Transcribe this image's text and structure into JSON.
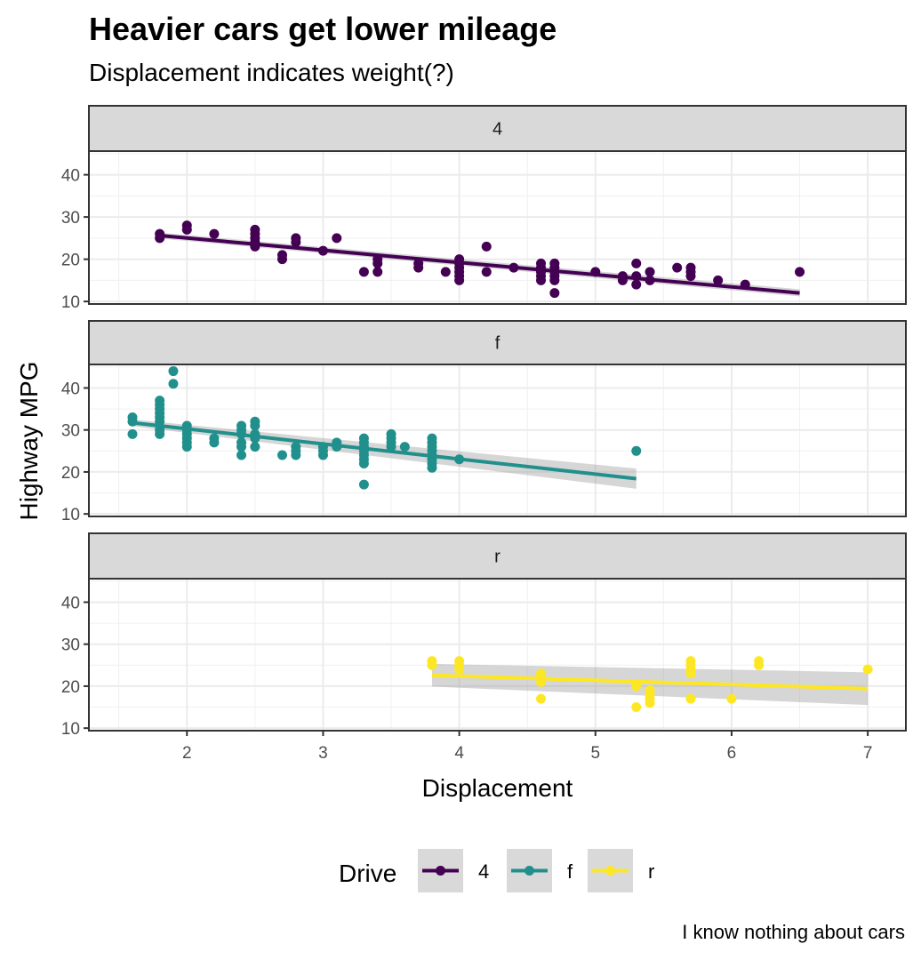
{
  "title": "Heavier cars get lower mileage",
  "subtitle": "Displacement indicates weight(?)",
  "caption": "I know nothing about cars",
  "chart_data": {
    "type": "scatter",
    "facet_by": "drive",
    "xlabel": "Displacement",
    "ylabel": "Highway MPG",
    "xlim": [
      1.28,
      7.28
    ],
    "ylim": [
      9.4,
      45.6
    ],
    "x_ticks": [
      2,
      3,
      4,
      5,
      6,
      7
    ],
    "x_tick_labels": [
      "2",
      "3",
      "4",
      "5",
      "6",
      "7"
    ],
    "y_ticks": [
      10,
      20,
      30,
      40
    ],
    "y_tick_labels": [
      "10",
      "20",
      "30",
      "40"
    ],
    "grid": true,
    "smoother": "linear regression with confidence band",
    "legend": {
      "title": "Drive",
      "position": "bottom",
      "entries": [
        "4",
        "f",
        "r"
      ]
    },
    "series": [
      {
        "name": "4",
        "color": "#440154",
        "points": [
          [
            1.8,
            26
          ],
          [
            1.8,
            25
          ],
          [
            2.0,
            28
          ],
          [
            2.0,
            27
          ],
          [
            2.2,
            26
          ],
          [
            2.5,
            27
          ],
          [
            2.5,
            26
          ],
          [
            2.5,
            25
          ],
          [
            2.5,
            24
          ],
          [
            2.5,
            23
          ],
          [
            2.7,
            21
          ],
          [
            2.7,
            20
          ],
          [
            2.8,
            25
          ],
          [
            2.8,
            24
          ],
          [
            3.0,
            22
          ],
          [
            3.1,
            25
          ],
          [
            3.3,
            17
          ],
          [
            3.4,
            20
          ],
          [
            3.4,
            19
          ],
          [
            3.4,
            17
          ],
          [
            3.7,
            19
          ],
          [
            3.7,
            18
          ],
          [
            3.9,
            17
          ],
          [
            4.0,
            20
          ],
          [
            4.0,
            19
          ],
          [
            4.0,
            18
          ],
          [
            4.0,
            17
          ],
          [
            4.0,
            16
          ],
          [
            4.0,
            15
          ],
          [
            4.2,
            23
          ],
          [
            4.2,
            17
          ],
          [
            4.4,
            18
          ],
          [
            4.6,
            19
          ],
          [
            4.6,
            18
          ],
          [
            4.6,
            17
          ],
          [
            4.6,
            16
          ],
          [
            4.6,
            15
          ],
          [
            4.7,
            19
          ],
          [
            4.7,
            18
          ],
          [
            4.7,
            17
          ],
          [
            4.7,
            16
          ],
          [
            4.7,
            15
          ],
          [
            4.7,
            12
          ],
          [
            5.0,
            17
          ],
          [
            5.2,
            16
          ],
          [
            5.2,
            15
          ],
          [
            5.3,
            19
          ],
          [
            5.3,
            16
          ],
          [
            5.3,
            14
          ],
          [
            5.4,
            17
          ],
          [
            5.4,
            15
          ],
          [
            5.6,
            18
          ],
          [
            5.7,
            18
          ],
          [
            5.7,
            17
          ],
          [
            5.7,
            16
          ],
          [
            5.9,
            15
          ],
          [
            6.1,
            14
          ],
          [
            6.5,
            17
          ]
        ],
        "fit": {
          "x": [
            1.8,
            6.5
          ],
          "y": [
            25.6,
            12.0
          ],
          "se_low": [
            24.9,
            11.2
          ],
          "se_high": [
            26.3,
            12.9
          ]
        }
      },
      {
        "name": "f",
        "color": "#21908C",
        "points": [
          [
            1.6,
            33
          ],
          [
            1.6,
            32
          ],
          [
            1.6,
            29
          ],
          [
            1.8,
            37
          ],
          [
            1.8,
            36
          ],
          [
            1.8,
            35
          ],
          [
            1.8,
            34
          ],
          [
            1.8,
            33
          ],
          [
            1.8,
            32
          ],
          [
            1.8,
            30
          ],
          [
            1.8,
            29
          ],
          [
            1.9,
            44
          ],
          [
            1.9,
            41
          ],
          [
            2.0,
            31
          ],
          [
            2.0,
            30
          ],
          [
            2.0,
            29
          ],
          [
            2.0,
            28
          ],
          [
            2.0,
            27
          ],
          [
            2.0,
            26
          ],
          [
            2.2,
            28
          ],
          [
            2.2,
            27
          ],
          [
            2.4,
            31
          ],
          [
            2.4,
            30
          ],
          [
            2.4,
            29
          ],
          [
            2.4,
            27
          ],
          [
            2.4,
            26
          ],
          [
            2.4,
            24
          ],
          [
            2.5,
            32
          ],
          [
            2.5,
            31
          ],
          [
            2.5,
            29
          ],
          [
            2.5,
            28
          ],
          [
            2.5,
            26
          ],
          [
            2.7,
            24
          ],
          [
            2.8,
            26
          ],
          [
            2.8,
            25
          ],
          [
            2.8,
            24
          ],
          [
            3.0,
            26
          ],
          [
            3.0,
            25
          ],
          [
            3.0,
            24
          ],
          [
            3.1,
            27
          ],
          [
            3.1,
            26
          ],
          [
            3.3,
            28
          ],
          [
            3.3,
            27
          ],
          [
            3.3,
            26
          ],
          [
            3.3,
            25
          ],
          [
            3.3,
            24
          ],
          [
            3.3,
            23
          ],
          [
            3.3,
            22
          ],
          [
            3.3,
            17
          ],
          [
            3.5,
            29
          ],
          [
            3.5,
            28
          ],
          [
            3.5,
            27
          ],
          [
            3.5,
            26
          ],
          [
            3.6,
            26
          ],
          [
            3.8,
            28
          ],
          [
            3.8,
            27
          ],
          [
            3.8,
            26
          ],
          [
            3.8,
            25
          ],
          [
            3.8,
            24
          ],
          [
            3.8,
            23
          ],
          [
            3.8,
            22
          ],
          [
            3.8,
            21
          ],
          [
            4.0,
            23
          ],
          [
            5.3,
            25
          ]
        ],
        "fit": {
          "x": [
            1.6,
            5.3
          ],
          "y": [
            31.7,
            18.4
          ],
          "se_low": [
            30.9,
            16.0
          ],
          "se_high": [
            32.5,
            20.8
          ]
        }
      },
      {
        "name": "r",
        "color": "#FDE725",
        "points": [
          [
            3.8,
            26
          ],
          [
            3.8,
            25
          ],
          [
            4.0,
            26
          ],
          [
            4.0,
            25
          ],
          [
            4.0,
            24
          ],
          [
            4.6,
            23
          ],
          [
            4.6,
            22
          ],
          [
            4.6,
            21
          ],
          [
            4.6,
            17
          ],
          [
            5.3,
            20
          ],
          [
            5.3,
            15
          ],
          [
            5.4,
            19
          ],
          [
            5.4,
            18
          ],
          [
            5.4,
            17
          ],
          [
            5.4,
            16
          ],
          [
            5.7,
            26
          ],
          [
            5.7,
            25
          ],
          [
            5.7,
            24
          ],
          [
            5.7,
            23
          ],
          [
            5.7,
            17
          ],
          [
            6.0,
            17
          ],
          [
            6.2,
            26
          ],
          [
            6.2,
            25
          ],
          [
            7.0,
            24
          ]
        ],
        "fit": {
          "x": [
            3.8,
            7.0
          ],
          "y": [
            22.6,
            19.4
          ],
          "se_low": [
            19.9,
            15.5
          ],
          "se_high": [
            25.3,
            23.3
          ]
        }
      }
    ]
  }
}
